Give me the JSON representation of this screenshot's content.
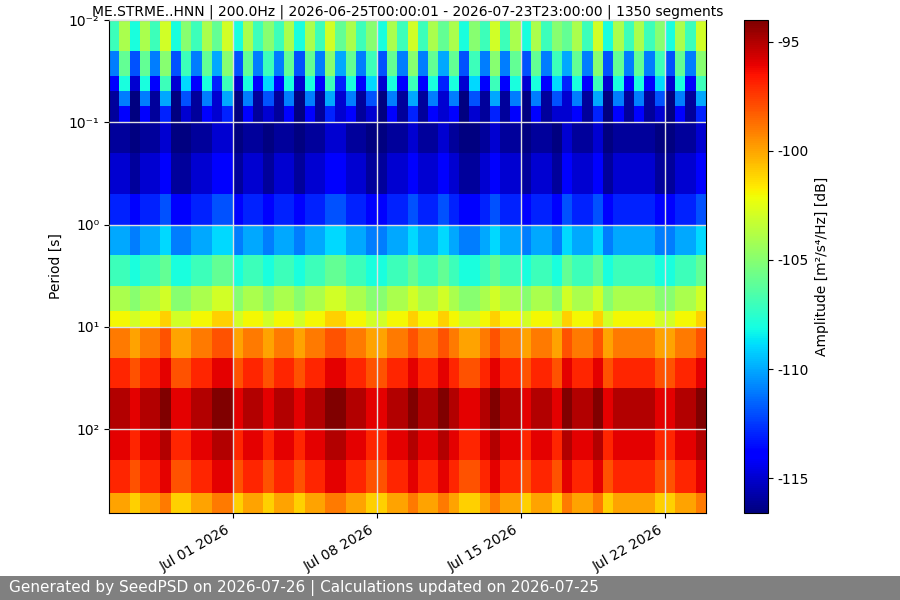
{
  "chart_data": {
    "type": "heatmap",
    "title": "ME.STRME..HNN | 200.0Hz | 2026-06-25T00:00:01 - 2026-07-23T23:00:00 | 1350 segments",
    "ylabel": "Period [s]",
    "x": [
      "2026-06-25T00:00",
      "2026-06-25T12:00",
      "2026-06-26T00:00",
      "2026-06-26T12:00",
      "2026-06-27T00:00",
      "2026-06-27T12:00",
      "2026-06-28T00:00",
      "2026-06-28T12:00",
      "2026-06-29T00:00",
      "2026-06-29T12:00",
      "2026-06-30T00:00",
      "2026-06-30T12:00",
      "2026-07-01T00:00",
      "2026-07-01T12:00",
      "2026-07-02T00:00",
      "2026-07-02T12:00",
      "2026-07-03T00:00",
      "2026-07-03T12:00",
      "2026-07-04T00:00",
      "2026-07-04T12:00",
      "2026-07-05T00:00",
      "2026-07-05T12:00",
      "2026-07-06T00:00",
      "2026-07-06T12:00",
      "2026-07-07T00:00",
      "2026-07-07T12:00",
      "2026-07-08T00:00",
      "2026-07-08T12:00",
      "2026-07-09T00:00",
      "2026-07-09T12:00",
      "2026-07-10T00:00",
      "2026-07-10T12:00",
      "2026-07-11T00:00",
      "2026-07-11T12:00",
      "2026-07-12T00:00",
      "2026-07-12T12:00",
      "2026-07-13T00:00",
      "2026-07-13T12:00",
      "2026-07-14T00:00",
      "2026-07-14T12:00",
      "2026-07-15T00:00",
      "2026-07-15T12:00",
      "2026-07-16T00:00",
      "2026-07-16T12:00",
      "2026-07-17T00:00",
      "2026-07-17T12:00",
      "2026-07-18T00:00",
      "2026-07-18T12:00",
      "2026-07-19T00:00",
      "2026-07-19T12:00",
      "2026-07-20T00:00",
      "2026-07-20T12:00",
      "2026-07-21T00:00",
      "2026-07-21T12:00",
      "2026-07-22T00:00",
      "2026-07-22T12:00",
      "2026-07-23T00:00",
      "2026-07-23T12:00",
      "2026-07-24T00:00"
    ],
    "y": [
      0.01,
      0.02,
      0.035,
      0.05,
      0.07,
      0.1,
      0.2,
      0.5,
      1,
      2,
      4,
      7,
      10,
      20,
      40,
      100,
      200,
      420,
      660
    ],
    "cells": [
      [
        -107,
        -104,
        -108,
        -104,
        -107,
        -103,
        -108,
        -105,
        -107,
        -104,
        -106,
        -103,
        -108,
        -104,
        -107,
        -105,
        -107,
        -104,
        -108,
        -104,
        -107,
        -103,
        -106,
        -104,
        -107,
        -105,
        -108,
        -104,
        -107,
        -103,
        -107,
        -104,
        -106,
        -104,
        -108,
        -105,
        -107,
        -103,
        -107,
        -104,
        -108,
        -104,
        -107,
        -105,
        -106,
        -104,
        -107,
        -103,
        -108,
        -104,
        -107,
        -104,
        -107,
        -105,
        -108,
        -104,
        -107,
        -103
      ],
      [
        -111,
        -106,
        -112,
        -106,
        -111,
        -105,
        -112,
        -107,
        -111,
        -106,
        -110,
        -105,
        -112,
        -106,
        -111,
        -107,
        -111,
        -106,
        -112,
        -106,
        -111,
        -105,
        -110,
        -106,
        -111,
        -107,
        -112,
        -106,
        -111,
        -105,
        -111,
        -106,
        -110,
        -106,
        -112,
        -107,
        -111,
        -105,
        -111,
        -106,
        -112,
        -106,
        -111,
        -107,
        -110,
        -106,
        -111,
        -105,
        -112,
        -106,
        -111,
        -106,
        -111,
        -107,
        -112,
        -106,
        -111,
        -105
      ],
      [
        -114,
        -108,
        -115,
        -108,
        -114,
        -107,
        -115,
        -109,
        -114,
        -108,
        -113,
        -107,
        -115,
        -108,
        -114,
        -109,
        -114,
        -108,
        -115,
        -108,
        -114,
        -107,
        -113,
        -108,
        -114,
        -109,
        -115,
        -108,
        -114,
        -107,
        -114,
        -108,
        -113,
        -108,
        -115,
        -109,
        -114,
        -107,
        -114,
        -108,
        -115,
        -108,
        -114,
        -109,
        -113,
        -108,
        -114,
        -107,
        -115,
        -108,
        -114,
        -108,
        -114,
        -109,
        -115,
        -108,
        -114,
        -107
      ],
      [
        -116,
        -111,
        -117,
        -111,
        -116,
        -110,
        -117,
        -112,
        -116,
        -111,
        -115,
        -110,
        -117,
        -111,
        -116,
        -112,
        -116,
        -111,
        -117,
        -111,
        -116,
        -110,
        -115,
        -111,
        -116,
        -112,
        -117,
        -111,
        -116,
        -110,
        -116,
        -111,
        -115,
        -111,
        -117,
        -112,
        -116,
        -110,
        -116,
        -111,
        -117,
        -111,
        -116,
        -112,
        -115,
        -111,
        -116,
        -110,
        -117,
        -111,
        -116,
        -111,
        -116,
        -112,
        -117,
        -111,
        -116,
        -110
      ],
      [
        -116,
        -114,
        -117,
        -114,
        -116,
        -113,
        -117,
        -115,
        -116,
        -114,
        -115,
        -113,
        -117,
        -114,
        -116,
        -115,
        -116,
        -114,
        -117,
        -114,
        -116,
        -113,
        -115,
        -114,
        -116,
        -115,
        -117,
        -114,
        -116,
        -113,
        -116,
        -114,
        -115,
        -114,
        -117,
        -115,
        -116,
        -113,
        -116,
        -114,
        -117,
        -114,
        -116,
        -115,
        -115,
        -114,
        -116,
        -113,
        -117,
        -114,
        -116,
        -114,
        -116,
        -115,
        -117,
        -114,
        -116,
        -113
      ],
      [
        -116,
        -116,
        -117,
        -116,
        -116,
        -115,
        -117,
        -117,
        -116,
        -116,
        -115,
        -115,
        -117,
        -116,
        -116,
        -117,
        -116,
        -116,
        -117,
        -116,
        -116,
        -115,
        -115,
        -116,
        -116,
        -117,
        -117,
        -116,
        -116,
        -115,
        -116,
        -116,
        -115,
        -116,
        -117,
        -117,
        -116,
        -115,
        -116,
        -116,
        -117,
        -116,
        -116,
        -117,
        -115,
        -116,
        -116,
        -115,
        -117,
        -116,
        -116,
        -116,
        -116,
        -117,
        -117,
        -116,
        -116,
        -115
      ],
      [
        -115,
        -115,
        -116,
        -115,
        -115,
        -114,
        -116,
        -116,
        -115,
        -115,
        -114,
        -114,
        -116,
        -115,
        -115,
        -116,
        -115,
        -115,
        -116,
        -115,
        -115,
        -114,
        -114,
        -115,
        -115,
        -116,
        -116,
        -115,
        -115,
        -114,
        -115,
        -115,
        -114,
        -115,
        -116,
        -116,
        -115,
        -114,
        -115,
        -115,
        -116,
        -115,
        -115,
        -116,
        -114,
        -115,
        -115,
        -114,
        -116,
        -115,
        -115,
        -115,
        -115,
        -116,
        -116,
        -115,
        -115,
        -114
      ],
      [
        -113,
        -113,
        -114,
        -113,
        -113,
        -112,
        -114,
        -114,
        -113,
        -113,
        -112,
        -112,
        -114,
        -113,
        -113,
        -114,
        -113,
        -113,
        -114,
        -113,
        -113,
        -112,
        -112,
        -113,
        -113,
        -114,
        -114,
        -113,
        -113,
        -112,
        -113,
        -113,
        -112,
        -113,
        -114,
        -114,
        -113,
        -112,
        -113,
        -113,
        -114,
        -113,
        -113,
        -114,
        -112,
        -113,
        -113,
        -112,
        -114,
        -113,
        -113,
        -113,
        -113,
        -114,
        -114,
        -113,
        -113,
        -112
      ],
      [
        -110,
        -110,
        -111,
        -110,
        -110,
        -109,
        -111,
        -111,
        -110,
        -110,
        -109,
        -109,
        -111,
        -110,
        -110,
        -111,
        -110,
        -110,
        -111,
        -110,
        -110,
        -109,
        -109,
        -110,
        -110,
        -111,
        -111,
        -110,
        -110,
        -109,
        -110,
        -110,
        -109,
        -110,
        -111,
        -111,
        -110,
        -109,
        -110,
        -110,
        -111,
        -110,
        -110,
        -111,
        -109,
        -110,
        -110,
        -109,
        -111,
        -110,
        -110,
        -110,
        -110,
        -111,
        -111,
        -110,
        -110,
        -109
      ],
      [
        -107,
        -107,
        -108,
        -107,
        -107,
        -106,
        -108,
        -108,
        -107,
        -107,
        -106,
        -106,
        -108,
        -107,
        -107,
        -108,
        -107,
        -107,
        -108,
        -107,
        -107,
        -106,
        -106,
        -107,
        -107,
        -108,
        -108,
        -107,
        -107,
        -106,
        -107,
        -107,
        -106,
        -107,
        -108,
        -108,
        -107,
        -106,
        -107,
        -107,
        -108,
        -107,
        -107,
        -108,
        -106,
        -107,
        -107,
        -106,
        -108,
        -107,
        -107,
        -107,
        -107,
        -108,
        -108,
        -107,
        -107,
        -106
      ],
      [
        -104,
        -104,
        -105,
        -104,
        -104,
        -103,
        -105,
        -105,
        -104,
        -104,
        -103,
        -103,
        -105,
        -104,
        -104,
        -105,
        -104,
        -104,
        -105,
        -104,
        -104,
        -103,
        -103,
        -104,
        -104,
        -105,
        -105,
        -104,
        -104,
        -103,
        -104,
        -104,
        -103,
        -104,
        -105,
        -105,
        -104,
        -103,
        -104,
        -104,
        -105,
        -104,
        -104,
        -105,
        -103,
        -104,
        -104,
        -103,
        -105,
        -104,
        -104,
        -104,
        -104,
        -105,
        -105,
        -104,
        -104,
        -103
      ],
      [
        -102,
        -102,
        -103,
        -102,
        -102,
        -101,
        -103,
        -103,
        -102,
        -102,
        -101,
        -101,
        -103,
        -102,
        -102,
        -103,
        -102,
        -102,
        -103,
        -102,
        -102,
        -101,
        -101,
        -102,
        -102,
        -103,
        -103,
        -102,
        -102,
        -101,
        -102,
        -102,
        -101,
        -102,
        -103,
        -103,
        -102,
        -101,
        -102,
        -102,
        -103,
        -102,
        -102,
        -103,
        -101,
        -102,
        -102,
        -101,
        -103,
        -102,
        -102,
        -102,
        -102,
        -103,
        -103,
        -102,
        -102,
        -101
      ],
      [
        -99,
        -99,
        -100,
        -99,
        -99,
        -98,
        -100,
        -100,
        -99,
        -99,
        -98,
        -98,
        -100,
        -99,
        -99,
        -100,
        -99,
        -99,
        -100,
        -99,
        -99,
        -98,
        -98,
        -99,
        -99,
        -100,
        -100,
        -99,
        -99,
        -98,
        -99,
        -99,
        -98,
        -99,
        -100,
        -100,
        -99,
        -98,
        -99,
        -99,
        -100,
        -99,
        -99,
        -100,
        -98,
        -99,
        -99,
        -98,
        -100,
        -99,
        -99,
        -99,
        -99,
        -100,
        -100,
        -99,
        -99,
        -98
      ],
      [
        -97,
        -97,
        -98,
        -97,
        -97,
        -96,
        -98,
        -98,
        -97,
        -97,
        -96,
        -96,
        -98,
        -97,
        -97,
        -98,
        -97,
        -97,
        -98,
        -97,
        -97,
        -96,
        -96,
        -97,
        -97,
        -98,
        -98,
        -97,
        -97,
        -96,
        -97,
        -97,
        -96,
        -97,
        -98,
        -98,
        -97,
        -96,
        -97,
        -97,
        -98,
        -97,
        -97,
        -98,
        -96,
        -97,
        -97,
        -96,
        -98,
        -97,
        -97,
        -97,
        -97,
        -98,
        -98,
        -97,
        -97,
        -96
      ],
      [
        -95,
        -95,
        -96,
        -95,
        -95,
        -94,
        -96,
        -96,
        -95,
        -95,
        -94,
        -94,
        -96,
        -95,
        -95,
        -96,
        -95,
        -95,
        -96,
        -95,
        -95,
        -94,
        -94,
        -95,
        -95,
        -96,
        -96,
        -95,
        -95,
        -94,
        -95,
        -95,
        -94,
        -95,
        -96,
        -96,
        -95,
        -94,
        -95,
        -95,
        -96,
        -95,
        -95,
        -96,
        -94,
        -95,
        -95,
        -94,
        -96,
        -95,
        -95,
        -95,
        -95,
        -96,
        -96,
        -95,
        -95,
        -94
      ],
      [
        -96,
        -96,
        -97,
        -96,
        -96,
        -95,
        -97,
        -97,
        -96,
        -96,
        -95,
        -95,
        -97,
        -96,
        -96,
        -97,
        -96,
        -96,
        -97,
        -96,
        -96,
        -95,
        -95,
        -96,
        -96,
        -97,
        -97,
        -96,
        -96,
        -95,
        -96,
        -96,
        -95,
        -96,
        -97,
        -97,
        -96,
        -95,
        -96,
        -96,
        -97,
        -96,
        -96,
        -97,
        -95,
        -96,
        -96,
        -95,
        -97,
        -96,
        -96,
        -96,
        -96,
        -97,
        -97,
        -96,
        -96,
        -95
      ],
      [
        -97,
        -97,
        -98,
        -97,
        -97,
        -96,
        -98,
        -98,
        -97,
        -97,
        -96,
        -96,
        -98,
        -97,
        -97,
        -98,
        -97,
        -97,
        -98,
        -97,
        -97,
        -96,
        -96,
        -97,
        -97,
        -98,
        -98,
        -97,
        -97,
        -96,
        -97,
        -97,
        -96,
        -97,
        -98,
        -98,
        -97,
        -96,
        -97,
        -97,
        -98,
        -97,
        -97,
        -98,
        -96,
        -97,
        -97,
        -96,
        -98,
        -97,
        -97,
        -97,
        -97,
        -98,
        -98,
        -97,
        -97,
        -96
      ],
      [
        -100,
        -100,
        -101,
        -100,
        -100,
        -99,
        -101,
        -101,
        -100,
        -100,
        -99,
        -99,
        -101,
        -100,
        -100,
        -101,
        -100,
        -100,
        -101,
        -100,
        -100,
        -99,
        -99,
        -100,
        -100,
        -101,
        -101,
        -100,
        -100,
        -99,
        -100,
        -100,
        -99,
        -100,
        -101,
        -101,
        -100,
        -99,
        -100,
        -100,
        -101,
        -100,
        -100,
        -101,
        -99,
        -100,
        -100,
        -99,
        -101,
        -100,
        -100,
        -100,
        -100,
        -101,
        -101,
        -100,
        -100,
        -99
      ]
    ],
    "color": "jet",
    "color_range": [
      -116.6,
      -94.0
    ],
    "color_ticks": [
      -115,
      -110,
      -105,
      -100,
      -95
    ],
    "color_label": "Amplitude [m²/s⁴/Hz] [dB]",
    "xlim": [
      "2026-06-25T00:00",
      "2026-07-24T00:00"
    ],
    "xticks": [
      {
        "value": "2026-07-01",
        "label": "Jul 01 2026"
      },
      {
        "value": "2026-07-08",
        "label": "Jul 08 2026"
      },
      {
        "value": "2026-07-15",
        "label": "Jul 15 2026"
      },
      {
        "value": "2026-07-22",
        "label": "Jul 22 2026"
      }
    ],
    "ylim": [
      660,
      0.01
    ],
    "yticks": [
      {
        "value": 0.01,
        "label": "10⁻²"
      },
      {
        "value": 0.1,
        "label": "10⁻¹"
      },
      {
        "value": 1,
        "label": "10⁰"
      },
      {
        "value": 10,
        "label": "10¹"
      },
      {
        "value": 100,
        "label": "10²"
      }
    ],
    "log": "y",
    "grid": true
  },
  "footer": "Generated by SeedPSD on 2026-07-26 | Calculations updated on 2026-07-25"
}
